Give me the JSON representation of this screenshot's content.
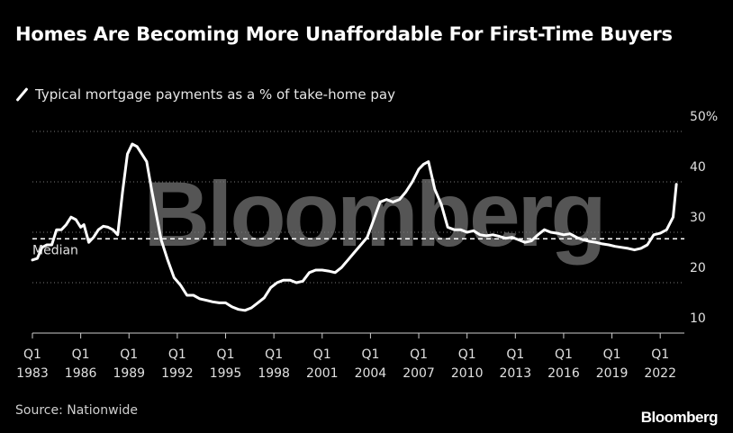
{
  "title": "Homes Are Becoming More Unaffordable For First-Time Buyers",
  "legend": {
    "label": "Typical mortgage payments as a % of take-home pay"
  },
  "source": "Source: Nationwide",
  "brand": "Bloomberg",
  "watermark": "Bloomberg",
  "colors": {
    "background": "#000000",
    "line": "#ffffff",
    "grid": "#777777",
    "watermark": "#555555"
  },
  "chart_data": {
    "type": "line",
    "title": "Homes Are Becoming More Unaffordable For First-Time Buyers",
    "xlabel": "",
    "ylabel": "",
    "ylim": [
      10,
      50
    ],
    "xlim": [
      1983,
      2023.5
    ],
    "yticks": [
      10,
      20,
      30,
      40,
      50
    ],
    "ytick_labels": [
      "10",
      "20",
      "30",
      "40",
      "50%"
    ],
    "xticks": [
      {
        "year": 1983,
        "label_top": "Q1",
        "label_bottom": "1983"
      },
      {
        "year": 1986,
        "label_top": "Q1",
        "label_bottom": "1986"
      },
      {
        "year": 1989,
        "label_top": "Q1",
        "label_bottom": "1989"
      },
      {
        "year": 1992,
        "label_top": "Q1",
        "label_bottom": "1992"
      },
      {
        "year": 1995,
        "label_top": "Q1",
        "label_bottom": "1995"
      },
      {
        "year": 1998,
        "label_top": "Q1",
        "label_bottom": "1998"
      },
      {
        "year": 2001,
        "label_top": "Q1",
        "label_bottom": "2001"
      },
      {
        "year": 2004,
        "label_top": "Q1",
        "label_bottom": "2004"
      },
      {
        "year": 2007,
        "label_top": "Q1",
        "label_bottom": "2007"
      },
      {
        "year": 2010,
        "label_top": "Q1",
        "label_bottom": "2010"
      },
      {
        "year": 2013,
        "label_top": "Q1",
        "label_bottom": "2013"
      },
      {
        "year": 2016,
        "label_top": "Q1",
        "label_bottom": "2016"
      },
      {
        "year": 2019,
        "label_top": "Q1",
        "label_bottom": "2019"
      },
      {
        "year": 2022,
        "label_top": "Q1",
        "label_bottom": "2022"
      }
    ],
    "median": {
      "value": 28.7,
      "label": "Median"
    },
    "grid": true,
    "series": [
      {
        "name": "Typical mortgage payments as a % of take-home pay",
        "x": [
          1983.0,
          1983.3,
          1983.6,
          1983.9,
          1984.2,
          1984.5,
          1984.8,
          1985.1,
          1985.4,
          1985.7,
          1986.0,
          1986.2,
          1986.5,
          1986.8,
          1987.1,
          1987.4,
          1987.7,
          1988.0,
          1988.3,
          1988.6,
          1988.9,
          1989.2,
          1989.5,
          1989.8,
          1990.1,
          1990.4,
          1990.7,
          1991.0,
          1991.4,
          1991.8,
          1992.2,
          1992.6,
          1993.0,
          1993.4,
          1993.8,
          1994.2,
          1994.6,
          1995.0,
          1995.4,
          1995.8,
          1996.2,
          1996.6,
          1997.0,
          1997.4,
          1997.8,
          1998.2,
          1998.6,
          1999.0,
          1999.4,
          1999.8,
          2000.2,
          2000.6,
          2001.0,
          2001.4,
          2001.8,
          2002.2,
          2002.6,
          2003.0,
          2003.4,
          2003.8,
          2004.2,
          2004.6,
          2005.0,
          2005.4,
          2005.8,
          2006.2,
          2006.6,
          2007.0,
          2007.3,
          2007.6,
          2008.0,
          2008.4,
          2008.8,
          2009.2,
          2009.6,
          2010.0,
          2010.4,
          2010.8,
          2011.2,
          2011.6,
          2012.0,
          2012.4,
          2012.8,
          2013.2,
          2013.6,
          2014.0,
          2014.4,
          2014.8,
          2015.2,
          2015.6,
          2016.0,
          2016.4,
          2016.8,
          2017.2,
          2017.6,
          2018.0,
          2018.4,
          2018.8,
          2019.2,
          2019.6,
          2020.0,
          2020.4,
          2020.8,
          2021.2,
          2021.6,
          2022.0,
          2022.4,
          2022.8,
          2023.0
        ],
        "values": [
          24.5,
          24.8,
          27.0,
          27.5,
          27.5,
          30.5,
          30.5,
          31.5,
          33.0,
          32.5,
          31.0,
          31.5,
          28.0,
          29.0,
          30.5,
          31.2,
          31.0,
          30.5,
          29.5,
          38.0,
          45.5,
          47.5,
          47.0,
          45.5,
          44.0,
          38.5,
          33.5,
          28.5,
          24.5,
          21.0,
          19.5,
          17.5,
          17.5,
          16.8,
          16.5,
          16.2,
          16.0,
          16.0,
          15.2,
          14.7,
          14.5,
          15.0,
          16.0,
          17.0,
          19.0,
          20.0,
          20.5,
          20.5,
          20.0,
          20.3,
          22.0,
          22.5,
          22.5,
          22.3,
          22.0,
          23.0,
          24.5,
          26.0,
          27.5,
          29.0,
          32.5,
          36.0,
          36.5,
          36.0,
          36.5,
          38.0,
          40.0,
          42.5,
          43.5,
          44.0,
          38.5,
          35.5,
          31.0,
          30.5,
          30.5,
          30.0,
          30.3,
          29.5,
          29.3,
          29.5,
          29.2,
          28.8,
          29.0,
          28.5,
          28.0,
          28.3,
          29.5,
          30.5,
          30.0,
          29.8,
          29.5,
          29.7,
          29.0,
          28.5,
          28.2,
          28.0,
          27.7,
          27.5,
          27.2,
          27.0,
          26.8,
          26.5,
          26.8,
          27.5,
          29.5,
          29.8,
          30.5,
          33.0,
          39.5
        ]
      }
    ]
  }
}
